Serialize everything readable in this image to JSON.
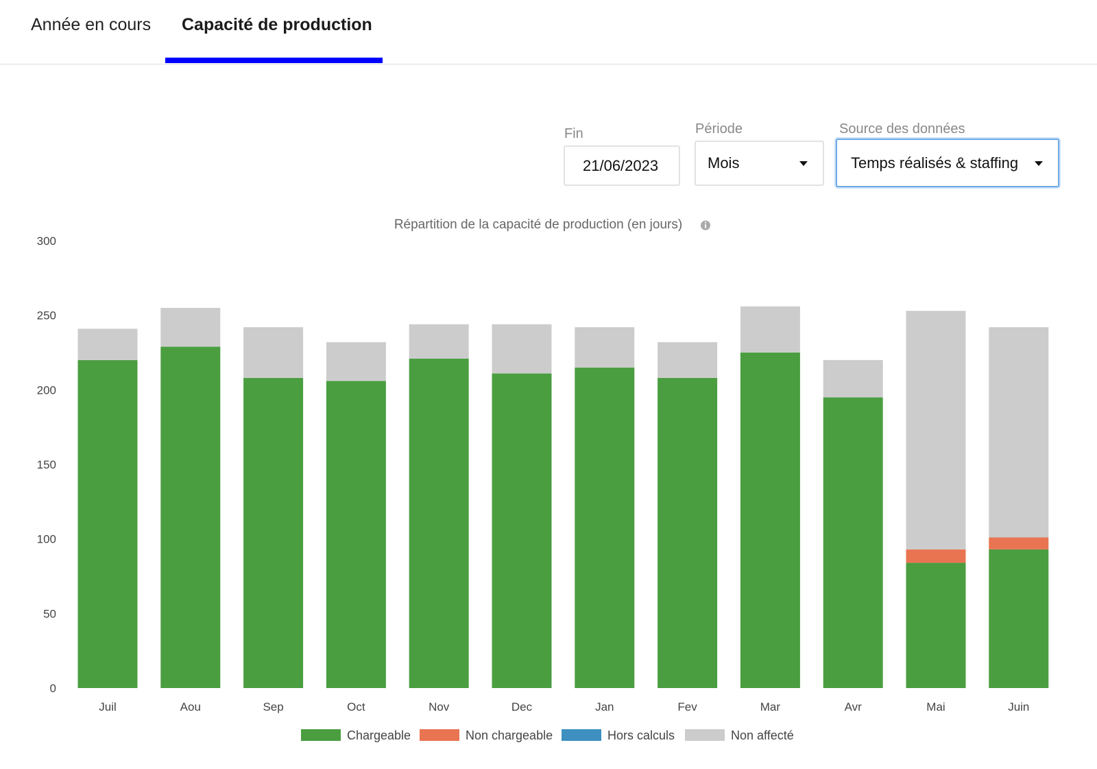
{
  "tabs": [
    {
      "label": "Année en cours",
      "active": false
    },
    {
      "label": "Capacité de production",
      "active": true
    }
  ],
  "filters": {
    "fin": {
      "label": "Fin",
      "value": "21/06/2023"
    },
    "periode": {
      "label": "Période",
      "value": "Mois"
    },
    "source": {
      "label": "Source des données",
      "value": "Temps réalisés & staffing"
    }
  },
  "chart_data": {
    "type": "bar",
    "stacked": true,
    "title": "Répartition de la capacité de production (en jours)",
    "title_icon": "info-icon",
    "categories": [
      "Juil",
      "Aou",
      "Sep",
      "Oct",
      "Nov",
      "Dec",
      "Jan",
      "Fev",
      "Mar",
      "Avr",
      "Mai",
      "Juin"
    ],
    "ylim": [
      0,
      300
    ],
    "yticks": [
      0,
      50,
      100,
      150,
      200,
      250,
      300
    ],
    "grid": false,
    "legend_position": "bottom",
    "series": [
      {
        "name": "Chargeable",
        "color": "#4a9e40",
        "values": [
          220,
          229,
          208,
          206,
          221,
          211,
          215,
          208,
          225,
          195,
          84,
          93
        ]
      },
      {
        "name": "Non chargeable",
        "color": "#e97452",
        "values": [
          0,
          0,
          0,
          0,
          0,
          0,
          0,
          0,
          0,
          0,
          9,
          8
        ]
      },
      {
        "name": "Hors calculs",
        "color": "#3d90c0",
        "values": [
          0,
          0,
          0,
          0,
          0,
          0,
          0,
          0,
          0,
          0,
          0,
          0
        ]
      },
      {
        "name": "Non affecté",
        "color": "#cccccc",
        "values": [
          21,
          26,
          34,
          26,
          23,
          33,
          27,
          24,
          31,
          25,
          160,
          141
        ]
      }
    ]
  }
}
